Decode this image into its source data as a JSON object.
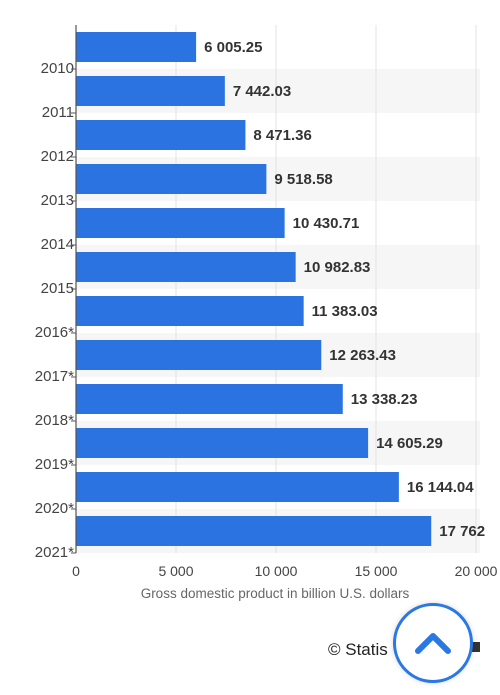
{
  "chart_data": {
    "type": "bar",
    "orientation": "horizontal",
    "categories": [
      "2010",
      "2011",
      "2012",
      "2013",
      "2014",
      "2015",
      "2016*",
      "2017*",
      "2018*",
      "2019*",
      "2020*",
      "2021*"
    ],
    "values": [
      6005.25,
      7442.03,
      8471.36,
      9518.58,
      10430.71,
      10982.83,
      11383.03,
      12263.43,
      13338.23,
      14605.29,
      16144.04,
      17762
    ],
    "value_labels": [
      "6 005.25",
      "7 442.03",
      "8 471.36",
      "9 518.58",
      "10 430.71",
      "10 982.83",
      "11 383.03",
      "12 263.43",
      "13 338.23",
      "14 605.29",
      "16 144.04",
      "17 762"
    ],
    "x_ticks": [
      0,
      5000,
      10000,
      15000,
      20000
    ],
    "x_tick_labels": [
      "0",
      "5 000",
      "10 000",
      "15 000",
      "20 000"
    ],
    "xlabel": "Gross domestic product in billion U.S. dollars",
    "ylabel": "",
    "xlim": [
      0,
      20000
    ],
    "bar_color": "#2a73e0",
    "grid": true
  },
  "footer": {
    "credit": "© Statis"
  },
  "scroll_top_button": {
    "icon": "chevron-up-icon",
    "color": "#2a78e4"
  }
}
